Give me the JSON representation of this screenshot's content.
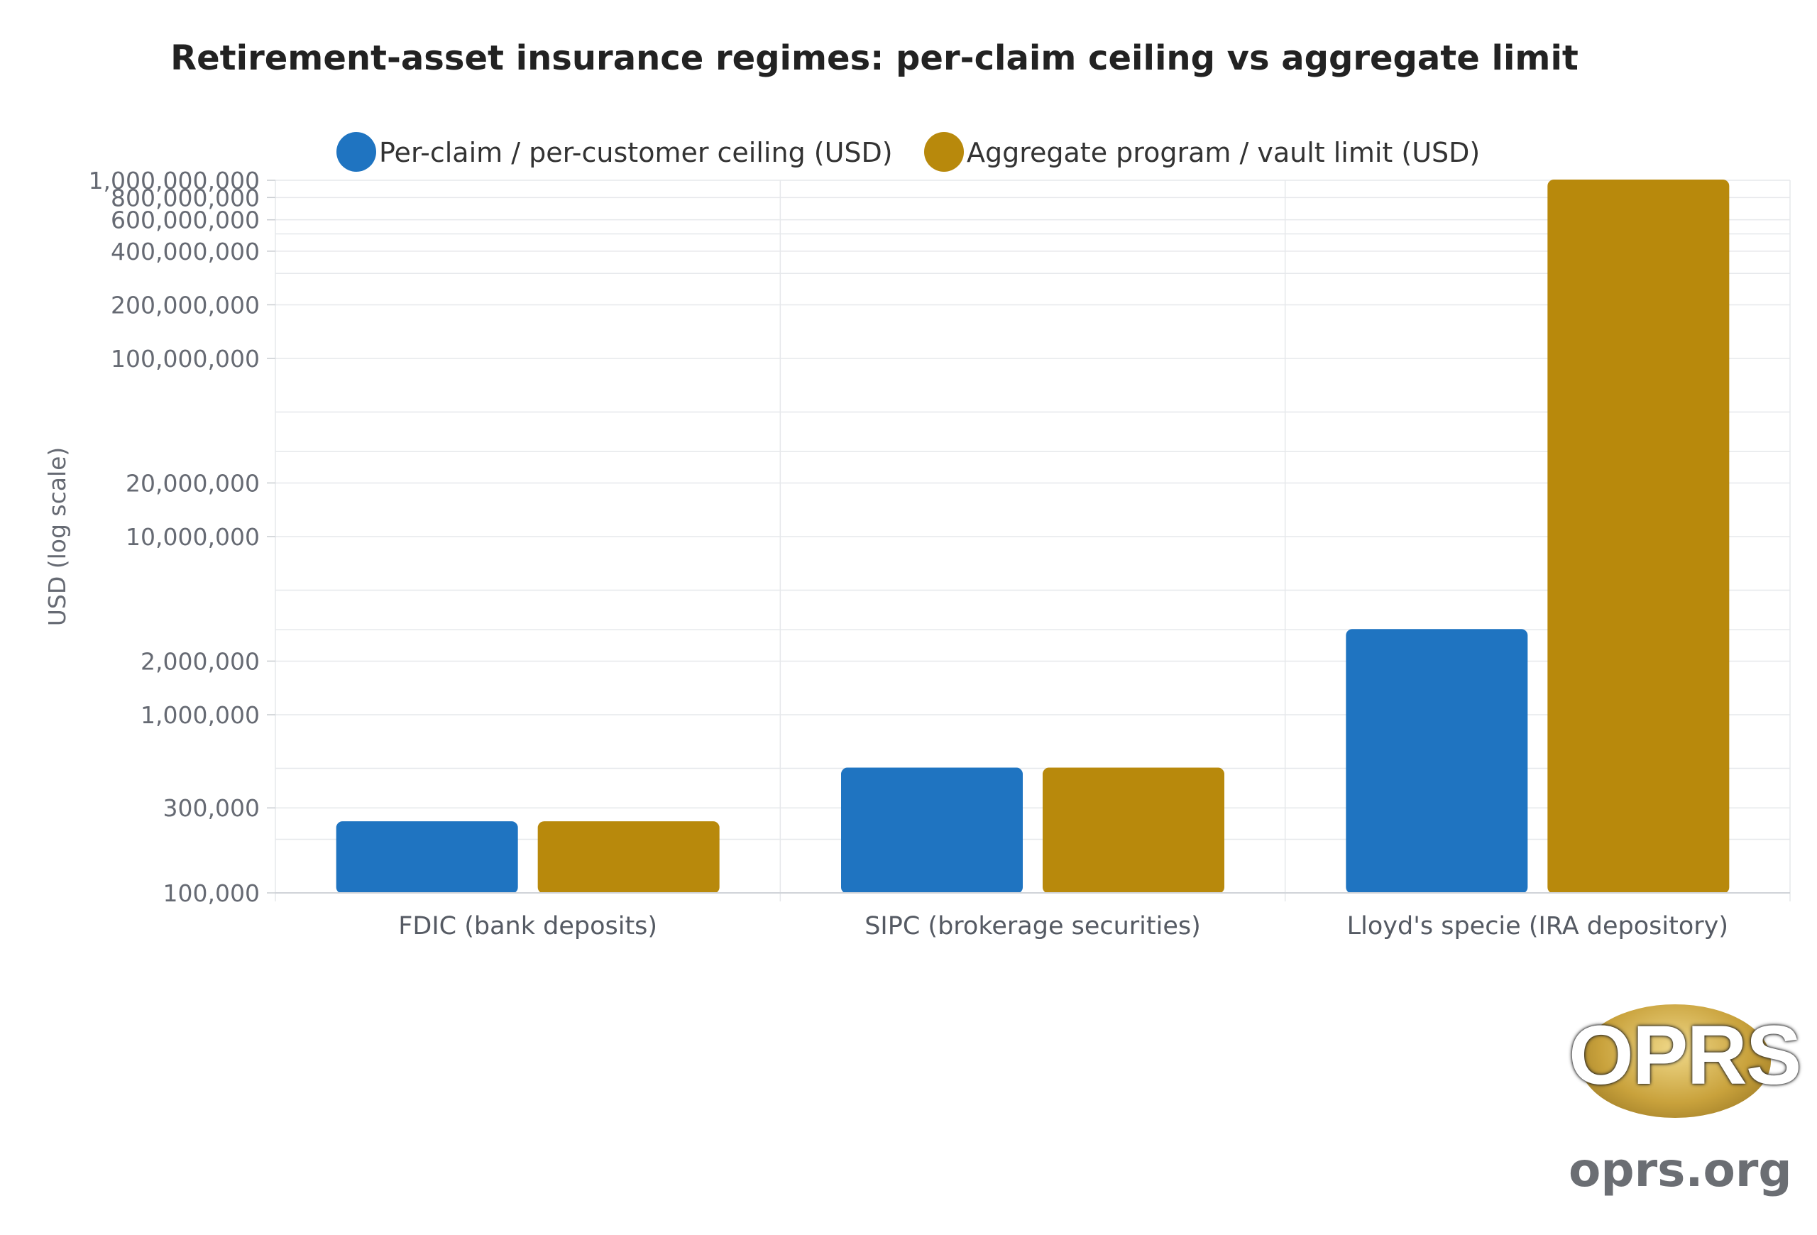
{
  "chart_data": {
    "type": "bar",
    "title": "Retirement-asset insurance regimes: per-claim ceiling vs aggregate limit",
    "ylabel": "USD (log scale)",
    "xlabel": "",
    "yscale": "log",
    "ylim": [
      100000,
      1000000000
    ],
    "grid": true,
    "legend_position": "top",
    "categories": [
      "FDIC (bank deposits)",
      "SIPC (brokerage securities)",
      "Lloyd's specie (IRA depository)"
    ],
    "series": [
      {
        "name": "Per-claim / per-customer ceiling (USD)",
        "color": "#1f74c1",
        "values": [
          250000,
          500000,
          3000000
        ]
      },
      {
        "name": "Aggregate program / vault limit (USD)",
        "color": "#b8890c",
        "values": [
          250000,
          500000,
          1000000000
        ]
      }
    ],
    "y_tick_labels": [
      {
        "value": 100000,
        "label": "100,000"
      },
      {
        "value": 300000,
        "label": "300,000"
      },
      {
        "value": 1000000,
        "label": "1,000,000"
      },
      {
        "value": 2000000,
        "label": "2,000,000"
      },
      {
        "value": 10000000,
        "label": "10,000,000"
      },
      {
        "value": 20000000,
        "label": "20,000,000"
      },
      {
        "value": 100000000,
        "label": "100,000,000"
      },
      {
        "value": 200000000,
        "label": "200,000,000"
      },
      {
        "value": 400000000,
        "label": "400,000,000"
      },
      {
        "value": 600000000,
        "label": "600,000,000"
      },
      {
        "value": 800000000,
        "label": "800,000,000"
      },
      {
        "value": 1000000000,
        "label": "1,000,000,000"
      }
    ],
    "gridline_values": [
      100000,
      200000,
      300000,
      500000,
      1000000,
      2000000,
      3000000,
      5000000,
      10000000,
      20000000,
      30000000,
      50000000,
      100000000,
      200000000,
      300000000,
      400000000,
      500000000,
      600000000,
      800000000,
      1000000000
    ]
  },
  "logo": {
    "letters": "OPRS",
    "url": "oprs.org"
  }
}
